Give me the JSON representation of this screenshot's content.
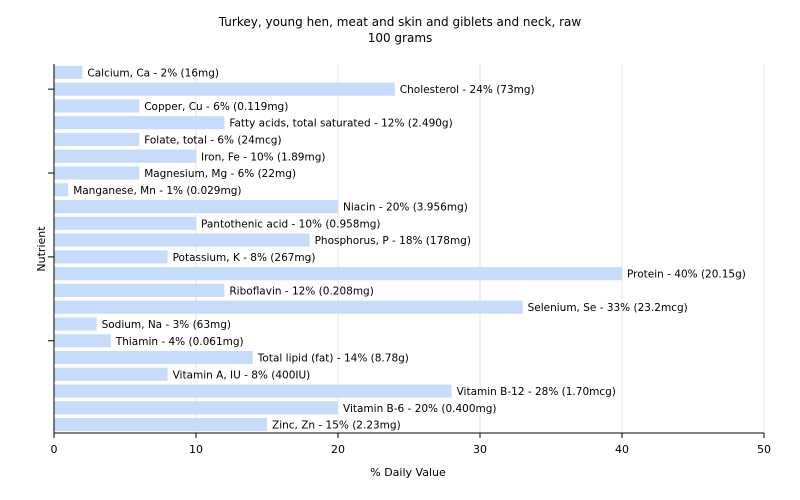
{
  "chart_data": {
    "type": "bar",
    "orientation": "horizontal",
    "title": "Turkey, young hen, meat and skin and giblets and neck, raw",
    "subtitle": "100 grams",
    "xlabel": "% Daily Value",
    "ylabel": "Nutrient",
    "xlim": [
      0,
      50
    ],
    "x_ticks": [
      "0",
      "10",
      "20",
      "30",
      "40",
      "50"
    ],
    "grid": true,
    "bar_color": "#c6dcfa",
    "categories": [
      "Calcium, Ca",
      "Cholesterol",
      "Copper, Cu",
      "Fatty acids, total saturated",
      "Folate, total",
      "Iron, Fe",
      "Magnesium, Mg",
      "Manganese, Mn",
      "Niacin",
      "Pantothenic acid",
      "Phosphorus, P",
      "Potassium, K",
      "Protein",
      "Riboflavin",
      "Selenium, Se",
      "Sodium, Na",
      "Thiamin",
      "Total lipid (fat)",
      "Vitamin A, IU",
      "Vitamin B-12",
      "Vitamin B-6",
      "Zinc, Zn"
    ],
    "values": [
      2,
      24,
      6,
      12,
      6,
      10,
      6,
      1,
      20,
      10,
      18,
      8,
      40,
      12,
      33,
      3,
      4,
      14,
      8,
      28,
      20,
      15
    ],
    "labels": [
      "Calcium, Ca - 2% (16mg)",
      "Cholesterol - 24% (73mg)",
      "Copper, Cu - 6% (0.119mg)",
      "Fatty acids, total saturated - 12% (2.490g)",
      "Folate, total - 6% (24mcg)",
      "Iron, Fe - 10% (1.89mg)",
      "Magnesium, Mg - 6% (22mg)",
      "Manganese, Mn - 1% (0.029mg)",
      "Niacin - 20% (3.956mg)",
      "Pantothenic acid - 10% (0.958mg)",
      "Phosphorus, P - 18% (178mg)",
      "Potassium, K - 8% (267mg)",
      "Protein - 40% (20.15g)",
      "Riboflavin - 12% (0.208mg)",
      "Selenium, Se - 33% (23.2mcg)",
      "Sodium, Na - 3% (63mg)",
      "Thiamin - 4% (0.061mg)",
      "Total lipid (fat) - 14% (8.78g)",
      "Vitamin A, IU - 8% (400IU)",
      "Vitamin B-12 - 28% (1.70mcg)",
      "Vitamin B-6 - 20% (0.400mg)",
      "Zinc, Zn - 15% (2.23mg)"
    ]
  }
}
